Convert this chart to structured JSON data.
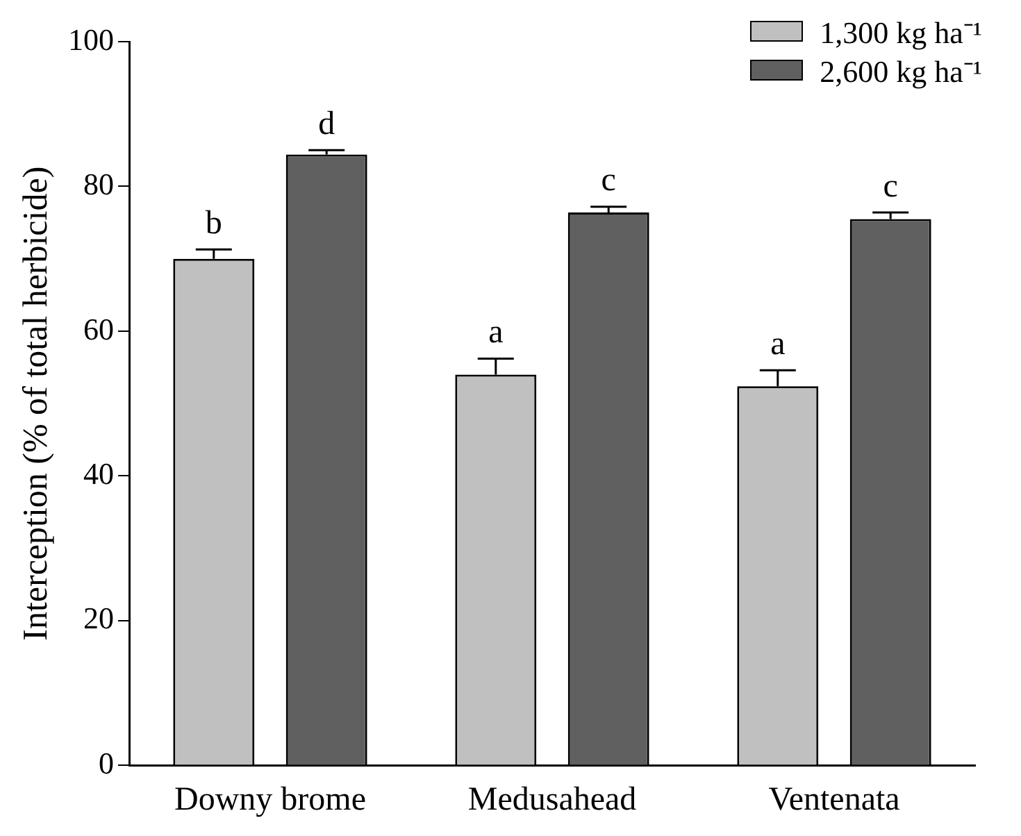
{
  "chart_data": {
    "type": "bar",
    "ylabel": "Interception (% of total herbicide)",
    "categories": [
      "Downy brome",
      "Medusahead",
      "Ventenata"
    ],
    "series": [
      {
        "name": "1,300 kg ha⁻¹",
        "color": "#c0c0c0",
        "values": [
          70.0,
          54.0,
          52.4
        ],
        "errors": [
          1.3,
          2.2,
          2.2
        ],
        "value_labels": [
          "b",
          "a",
          "a"
        ]
      },
      {
        "name": "2,600 kg ha⁻¹",
        "color": "#606060",
        "values": [
          84.4,
          76.4,
          75.5
        ],
        "errors": [
          0.6,
          0.8,
          0.9
        ],
        "value_labels": [
          "d",
          "c",
          "c"
        ]
      }
    ],
    "ylim": [
      0,
      100
    ],
    "yticks": [
      0,
      20,
      40,
      60,
      80,
      100
    ],
    "grid": false,
    "legend": "top right"
  }
}
